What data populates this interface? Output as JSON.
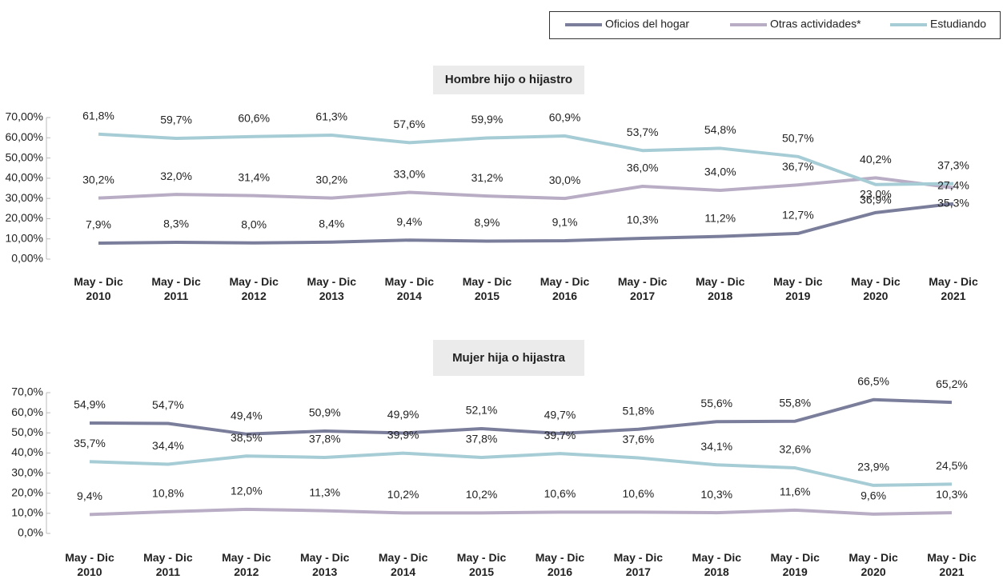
{
  "chart_data": [
    {
      "type": "line",
      "title": "Hombre hijo o hijastro",
      "legend": "top-right",
      "categories": [
        "May - Dic\n2010",
        "May - Dic\n2011",
        "May - Dic\n2012",
        "May - Dic\n2013",
        "May - Dic\n2014",
        "May - Dic\n2015",
        "May - Dic\n2016",
        "May - Dic\n2017",
        "May - Dic\n2018",
        "May - Dic\n2019",
        "May - Dic\n2020",
        "May - Dic\n2021"
      ],
      "series": [
        {
          "name": "Oficios del hogar",
          "color": "#7b7e9b",
          "values": [
            7.9,
            8.3,
            8.0,
            8.4,
            9.4,
            8.9,
            9.1,
            10.3,
            11.2,
            12.7,
            23.0,
            27.4
          ],
          "value_labels": [
            "7,9%",
            "8,3%",
            "8,0%",
            "8,4%",
            "9,4%",
            "8,9%",
            "9,1%",
            "10,3%",
            "11,2%",
            "12,7%",
            "23,0%",
            "27,4%"
          ]
        },
        {
          "name": "Otras actividades*",
          "color": "#b8adc4",
          "values": [
            30.2,
            32.0,
            31.4,
            30.2,
            33.0,
            31.2,
            30.0,
            36.0,
            34.0,
            36.7,
            40.2,
            35.3
          ],
          "value_labels": [
            "30,2%",
            "32,0%",
            "31,4%",
            "30,2%",
            "33,0%",
            "31,2%",
            "30,0%",
            "36,0%",
            "34,0%",
            "36,7%",
            "40,2%",
            "35,3%"
          ]
        },
        {
          "name": "Estudiando",
          "color": "#a6ccd5",
          "values": [
            61.8,
            59.7,
            60.6,
            61.3,
            57.6,
            59.9,
            60.9,
            53.7,
            54.8,
            50.7,
            36.9,
            37.3
          ],
          "value_labels": [
            "61,8%",
            "59,7%",
            "60,6%",
            "61,3%",
            "57,6%",
            "59,9%",
            "60,9%",
            "53,7%",
            "54,8%",
            "50,7%",
            "36,9%",
            "37,3%"
          ]
        }
      ],
      "ylim": [
        0,
        70
      ],
      "yticks": [
        {
          "value": 0,
          "label": "0,00%"
        },
        {
          "value": 10,
          "label": "10,00%"
        },
        {
          "value": 20,
          "label": "20,00%"
        },
        {
          "value": 30,
          "label": "30,00%"
        },
        {
          "value": 40,
          "label": "40,00%"
        },
        {
          "value": 50,
          "label": "50,00%"
        },
        {
          "value": 60,
          "label": "60,00%"
        },
        {
          "value": 70,
          "label": "70,00%"
        }
      ]
    },
    {
      "type": "line",
      "title": "Mujer hija o hijastra",
      "categories": [
        "May - Dic\n2010",
        "May - Dic\n2011",
        "May - Dic\n2012",
        "May - Dic\n2013",
        "May - Dic\n2014",
        "May - Dic\n2015",
        "May - Dic\n2016",
        "May - Dic\n2017",
        "May - Dic\n2018",
        "May - Dic\n2019",
        "May - Dic\n2020",
        "May - Dic\n2021"
      ],
      "series": [
        {
          "name": "Oficios del hogar",
          "color": "#7b7e9b",
          "values": [
            54.9,
            54.7,
            49.4,
            50.9,
            49.9,
            52.1,
            49.7,
            51.8,
            55.6,
            55.8,
            66.5,
            65.2
          ],
          "value_labels": [
            "54,9%",
            "54,7%",
            "49,4%",
            "50,9%",
            "49,9%",
            "52,1%",
            "49,7%",
            "51,8%",
            "55,6%",
            "55,8%",
            "66,5%",
            "65,2%"
          ]
        },
        {
          "name": "Otras actividades*",
          "color": "#b8adc4",
          "values": [
            9.4,
            10.8,
            12.0,
            11.3,
            10.2,
            10.2,
            10.6,
            10.6,
            10.3,
            11.6,
            9.6,
            10.3
          ],
          "value_labels": [
            "9,4%",
            "10,8%",
            "12,0%",
            "11,3%",
            "10,2%",
            "10,2%",
            "10,6%",
            "10,6%",
            "10,3%",
            "11,6%",
            "9,6%",
            "10,3%"
          ]
        },
        {
          "name": "Estudiando",
          "color": "#a6ccd5",
          "values": [
            35.7,
            34.4,
            38.5,
            37.8,
            39.9,
            37.8,
            39.7,
            37.6,
            34.1,
            32.6,
            23.9,
            24.5
          ],
          "value_labels": [
            "35,7%",
            "34,4%",
            "38,5%",
            "37,8%",
            "39,9%",
            "37,8%",
            "39,7%",
            "37,6%",
            "34,1%",
            "32,6%",
            "23,9%",
            "24,5%"
          ]
        }
      ],
      "ylim": [
        0,
        70
      ],
      "yticks": [
        {
          "value": 0,
          "label": "0,0%"
        },
        {
          "value": 10,
          "label": "10,0%"
        },
        {
          "value": 20,
          "label": "20,0%"
        },
        {
          "value": 30,
          "label": "30,0%"
        },
        {
          "value": 40,
          "label": "40,0%"
        },
        {
          "value": 50,
          "label": "50,0%"
        },
        {
          "value": 60,
          "label": "60,0%"
        },
        {
          "value": 70,
          "label": "70,0%"
        }
      ]
    }
  ]
}
